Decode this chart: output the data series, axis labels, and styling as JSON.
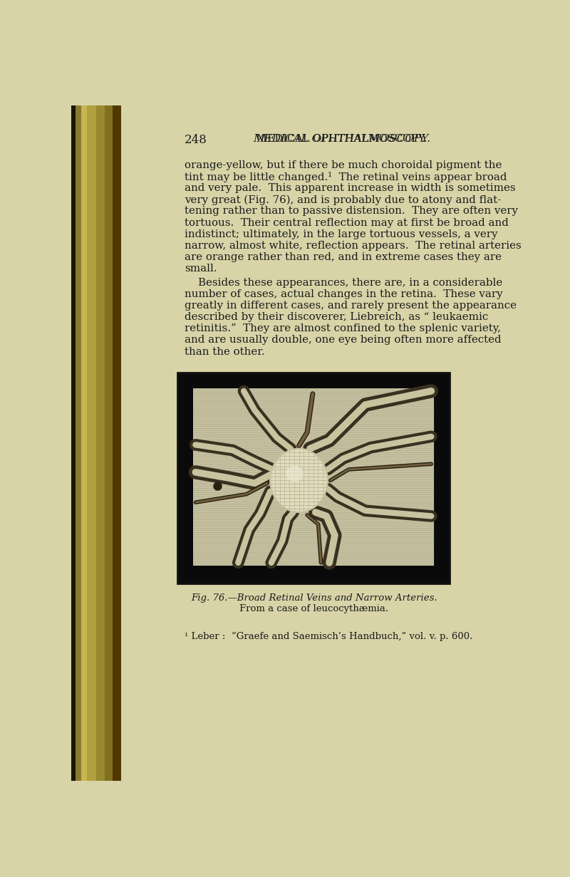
{
  "bg_color": "#d8d4a8",
  "page_bg": "#d4d0a0",
  "text_color": "#1a1a1a",
  "page_number": "248",
  "header": "MEDICAL OPHTHALMOSCOPY.",
  "body_lines_block1": [
    "orange-yellow, but if there be much choroidal pigment the",
    "tint may be little changed.¹  The retinal veins appear broad",
    "and very pale.  This apparent increase in width is sometimes",
    "very great (Fig. 76), and is probably due to atony and flat-",
    "tening rather than to passive distension.  They are often very",
    "tortuous.  Their central reflection may at first be broad and",
    "indistinct; ultimately, in the large tortuous vessels, a very",
    "narrow, almost white, reflection appears.  The retinal arteries",
    "are orange rather than red, and in extreme cases they are",
    "small."
  ],
  "body_lines_block2": [
    "Besides these appearances, there are, in a considerable",
    "number of cases, actual changes in the retina.  These vary",
    "greatly in different cases, and rarely present the appearance",
    "described by their discoverer, Liebreich, as “ leukaemic",
    "retinitis.”  They are almost confined to the splenic variety,",
    "and are usually double, one eye being often more affected",
    "than the other."
  ],
  "fig_caption_line1": "Fig. 76.—Broad Retinal Veins and Narrow Arteries.",
  "fig_caption_line2": "From a case of leucocythæmia.",
  "footnote": "¹ Leber :  “Graefe and Saemisch’s Handbuch,” vol. v. p. 600.",
  "spine_colors": [
    "#8a7a30",
    "#b8a840",
    "#d4c060",
    "#c8b450",
    "#a89030"
  ],
  "image_bg_color": "#b8b898",
  "image_border_color": "#0a0a0a",
  "vein_dark": "#3a3020",
  "vein_light": "#c8c4a0",
  "disc_color": "#e8e4cc",
  "hatching_color": "#a0a080"
}
